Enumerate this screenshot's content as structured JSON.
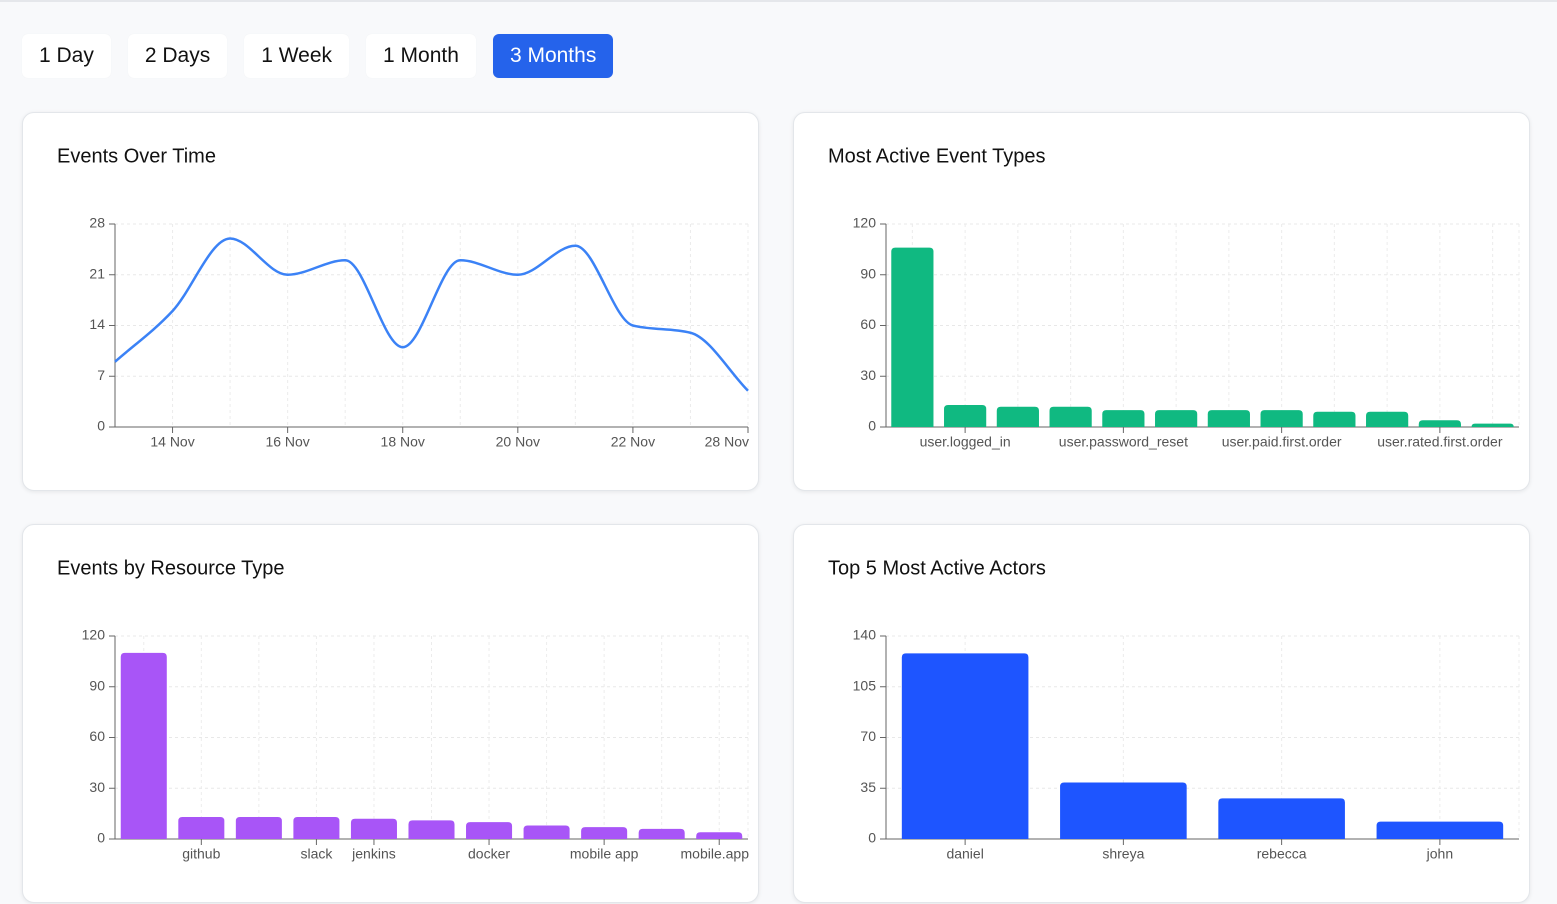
{
  "filters": {
    "options": [
      "1 Day",
      "2 Days",
      "1 Week",
      "1 Month",
      "3 Months"
    ],
    "selected": 4
  },
  "chart_data": [
    {
      "type": "line",
      "title": "Events Over Time",
      "categories": [
        null,
        "14 Nov",
        null,
        "16 Nov",
        null,
        "18 Nov",
        null,
        "20 Nov",
        null,
        "22 Nov",
        null,
        "28 Nov"
      ],
      "values": [
        9,
        16,
        26,
        21,
        23,
        11,
        23,
        21,
        25,
        14,
        13,
        5
      ],
      "color": "#3b82f6",
      "ylim": [
        0,
        28
      ],
      "yticks": [
        0,
        7,
        14,
        21,
        28
      ],
      "grid": true
    },
    {
      "type": "bar",
      "title": "Most Active Event Types",
      "categories": [
        null,
        "user.logged_in",
        null,
        null,
        "user.password_reset",
        null,
        null,
        "user.paid.first.order",
        null,
        null,
        "user.rated.first.order",
        null
      ],
      "values": [
        106,
        13,
        12,
        12,
        10,
        10,
        10,
        10,
        9,
        9,
        4,
        2
      ],
      "color": "#10b981",
      "ylim": [
        0,
        120
      ],
      "yticks": [
        0,
        30,
        60,
        90,
        120
      ],
      "grid": true
    },
    {
      "type": "bar",
      "title": "Events by Resource Type",
      "categories": [
        null,
        "github",
        null,
        "slack",
        "jenkins",
        null,
        "docker",
        null,
        "mobile app",
        null,
        "mobile.app"
      ],
      "values": [
        110,
        13,
        13,
        13,
        12,
        11,
        10,
        8,
        7,
        6,
        4
      ],
      "color": "#a855f7",
      "ylim": [
        0,
        120
      ],
      "yticks": [
        0,
        30,
        60,
        90,
        120
      ],
      "grid": true
    },
    {
      "type": "bar",
      "title": "Top 5 Most Active Actors",
      "categories": [
        "daniel",
        "shreya",
        "rebecca",
        "john"
      ],
      "values": [
        128,
        39,
        28,
        12
      ],
      "color": "#1e55ff",
      "ylim": [
        0,
        140
      ],
      "yticks": [
        0,
        35,
        70,
        105,
        140
      ],
      "grid": true
    }
  ]
}
